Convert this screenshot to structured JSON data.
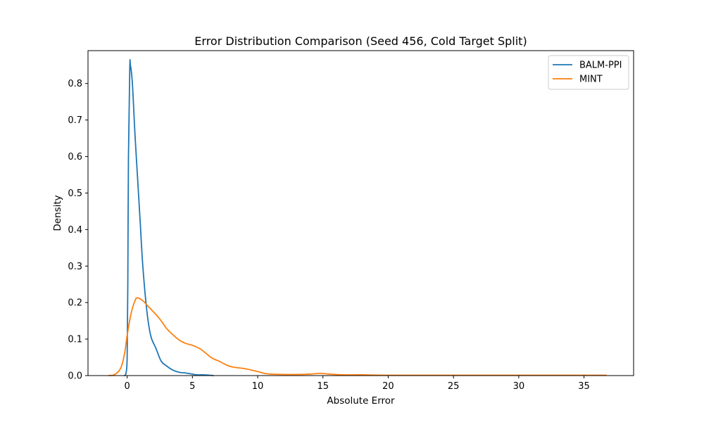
{
  "chart_data": {
    "type": "line",
    "title": "Error Distribution Comparison (Seed 456, Cold Target Split)",
    "xlabel": "Absolute Error",
    "ylabel": "Density",
    "xlim": [
      -3.0,
      38.8
    ],
    "ylim": [
      0,
      0.89
    ],
    "xticks": [
      0,
      5,
      10,
      15,
      20,
      25,
      30,
      35
    ],
    "yticks": [
      0.0,
      0.1,
      0.2,
      0.3,
      0.4,
      0.5,
      0.6,
      0.7,
      0.8
    ],
    "grid": false,
    "legend_position": "top-right",
    "series": [
      {
        "name": "BALM-PPI",
        "color": "#1f77b4",
        "points": [
          [
            -0.2,
            0.0
          ],
          [
            -0.1,
            0.005
          ],
          [
            0.0,
            0.05
          ],
          [
            0.05,
            0.25
          ],
          [
            0.1,
            0.6
          ],
          [
            0.2,
            0.84
          ],
          [
            0.25,
            0.85
          ],
          [
            0.4,
            0.8
          ],
          [
            0.6,
            0.66
          ],
          [
            0.8,
            0.54
          ],
          [
            1.0,
            0.42
          ],
          [
            1.2,
            0.3
          ],
          [
            1.5,
            0.18
          ],
          [
            1.8,
            0.11
          ],
          [
            2.2,
            0.075
          ],
          [
            2.6,
            0.04
          ],
          [
            3.0,
            0.027
          ],
          [
            3.5,
            0.015
          ],
          [
            4.0,
            0.009
          ],
          [
            4.5,
            0.007
          ],
          [
            5.0,
            0.004
          ],
          [
            5.3,
            0.002
          ],
          [
            5.8,
            0.002
          ],
          [
            6.3,
            0.001
          ],
          [
            6.6,
            0.0
          ]
        ]
      },
      {
        "name": "MINT",
        "color": "#ff7f0e",
        "points": [
          [
            -1.4,
            0.0
          ],
          [
            -1.0,
            0.002
          ],
          [
            -0.5,
            0.02
          ],
          [
            -0.2,
            0.06
          ],
          [
            0.0,
            0.11
          ],
          [
            0.3,
            0.17
          ],
          [
            0.6,
            0.205
          ],
          [
            0.8,
            0.213
          ],
          [
            1.2,
            0.205
          ],
          [
            1.6,
            0.19
          ],
          [
            2.0,
            0.175
          ],
          [
            2.5,
            0.155
          ],
          [
            3.0,
            0.13
          ],
          [
            3.5,
            0.112
          ],
          [
            4.0,
            0.097
          ],
          [
            4.5,
            0.088
          ],
          [
            5.0,
            0.083
          ],
          [
            5.6,
            0.073
          ],
          [
            6.0,
            0.062
          ],
          [
            6.5,
            0.048
          ],
          [
            7.0,
            0.04
          ],
          [
            7.5,
            0.031
          ],
          [
            8.0,
            0.024
          ],
          [
            9.0,
            0.019
          ],
          [
            10.0,
            0.011
          ],
          [
            10.5,
            0.006
          ],
          [
            11.0,
            0.004
          ],
          [
            12.0,
            0.003
          ],
          [
            13.0,
            0.003
          ],
          [
            14.0,
            0.004
          ],
          [
            14.8,
            0.006
          ],
          [
            15.5,
            0.004
          ],
          [
            16.5,
            0.002
          ],
          [
            18.0,
            0.002
          ],
          [
            20.0,
            0.001
          ],
          [
            25.0,
            0.001
          ],
          [
            30.0,
            0.001
          ],
          [
            35.0,
            0.001
          ],
          [
            36.7,
            0.001
          ]
        ]
      }
    ]
  }
}
